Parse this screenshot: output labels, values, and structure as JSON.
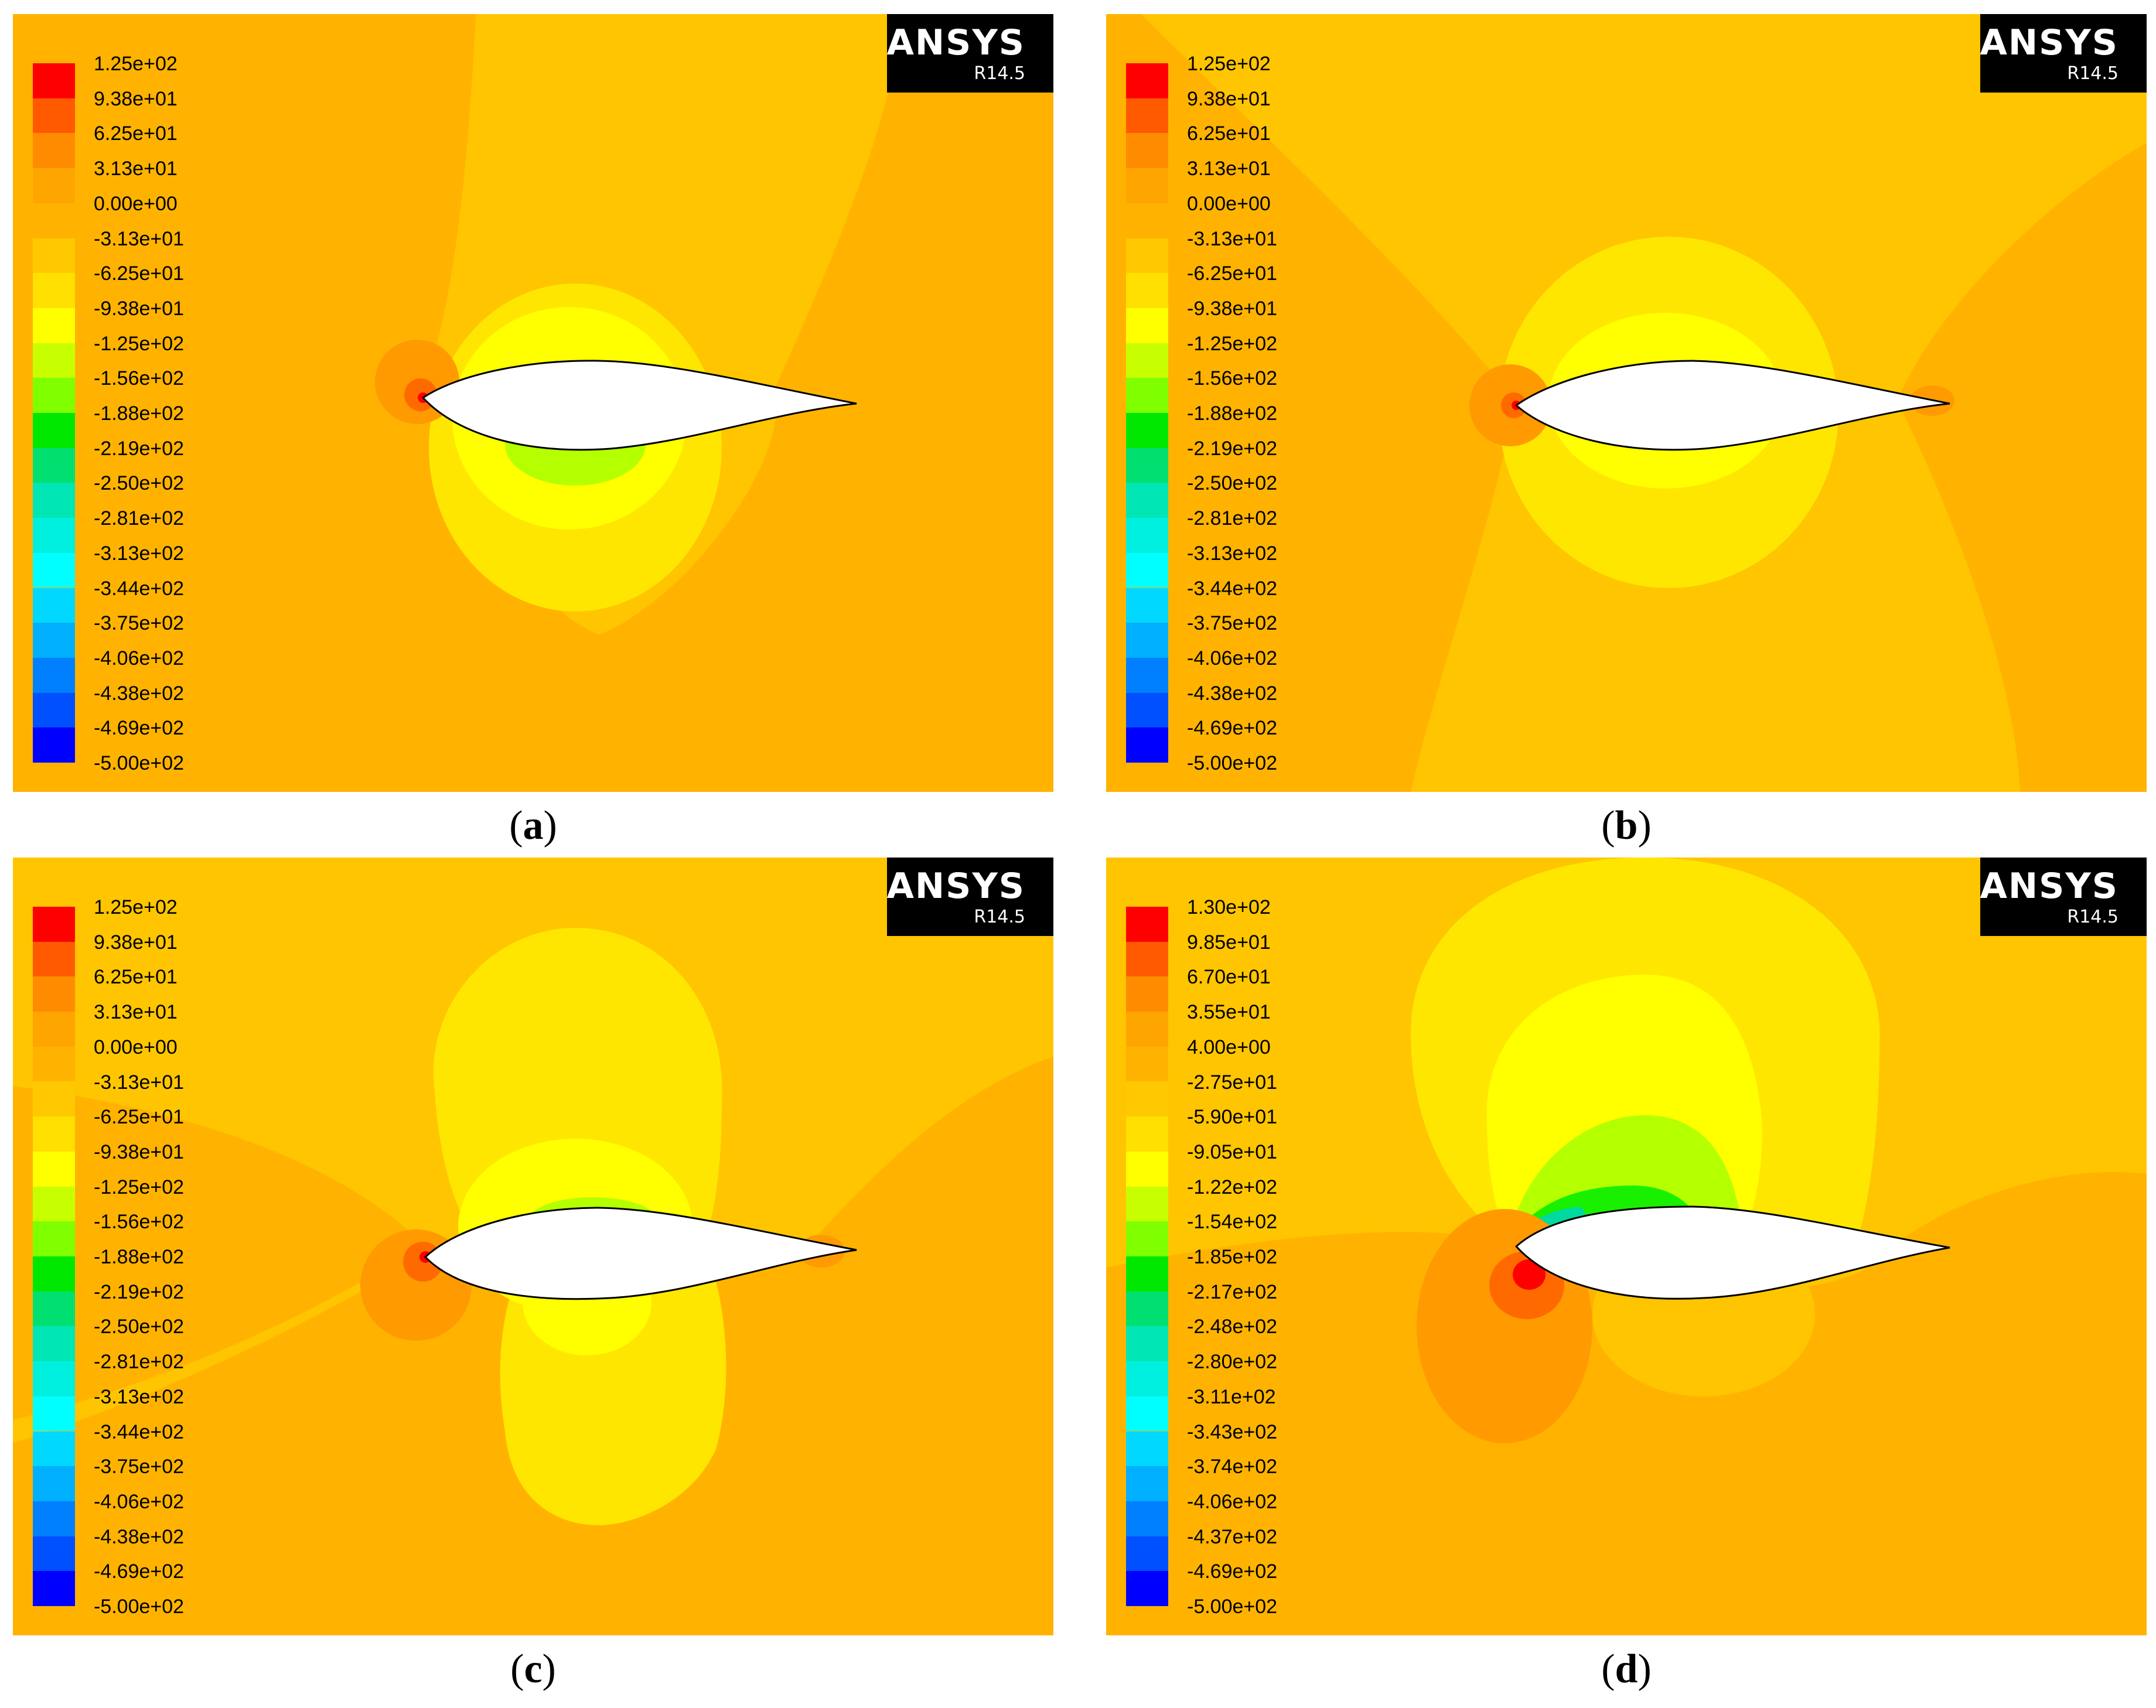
{
  "colors": {
    "background": "#FFB300",
    "band": "#FFC500",
    "inner": "#FFE600",
    "core": "#FFFF00",
    "lime": "#B4FF00",
    "green": "#19F000",
    "teal": "#00D9A0",
    "stag_outer": "#FF9A00",
    "stag_mid": "#FF6A00",
    "stag_core": "#FF0000",
    "airfoil": "#FFFFFF"
  },
  "legend_colors": [
    "#FF0000",
    "#FF5A00",
    "#FF8C00",
    "#FFA500",
    "#FFB300",
    "#FFC800",
    "#FFE000",
    "#FFFF00",
    "#C8FF00",
    "#80FF00",
    "#00E800",
    "#00E070",
    "#00E6B4",
    "#00F0E0",
    "#00FFFF",
    "#00D8FF",
    "#00B0FF",
    "#0080FF",
    "#0050FF",
    "#0000FF"
  ],
  "panels": [
    {
      "id": "a",
      "caption": "a",
      "logo": {
        "brand": "ANSYS",
        "version": "R14.5"
      },
      "legend": [
        "1.25e+02",
        "9.38e+01",
        "6.25e+01",
        "3.13e+01",
        "0.00e+00",
        "-3.13e+01",
        "-6.25e+01",
        "-9.38e+01",
        "-1.25e+02",
        "-1.56e+02",
        "-1.88e+02",
        "-2.19e+02",
        "-2.50e+02",
        "-2.81e+02",
        "-3.13e+02",
        "-3.44e+02",
        "-3.75e+02",
        "-4.06e+02",
        "-4.38e+02",
        "-4.69e+02",
        "-5.00e+02"
      ]
    },
    {
      "id": "b",
      "caption": "b",
      "logo": {
        "brand": "ANSYS",
        "version": "R14.5"
      },
      "legend": [
        "1.25e+02",
        "9.38e+01",
        "6.25e+01",
        "3.13e+01",
        "0.00e+00",
        "-3.13e+01",
        "-6.25e+01",
        "-9.38e+01",
        "-1.25e+02",
        "-1.56e+02",
        "-1.88e+02",
        "-2.19e+02",
        "-2.50e+02",
        "-2.81e+02",
        "-3.13e+02",
        "-3.44e+02",
        "-3.75e+02",
        "-4.06e+02",
        "-4.38e+02",
        "-4.69e+02",
        "-5.00e+02"
      ]
    },
    {
      "id": "c",
      "caption": "c",
      "logo": {
        "brand": "ANSYS",
        "version": "R14.5"
      },
      "legend": [
        "1.25e+02",
        "9.38e+01",
        "6.25e+01",
        "3.13e+01",
        "0.00e+00",
        "-3.13e+01",
        "-6.25e+01",
        "-9.38e+01",
        "-1.25e+02",
        "-1.56e+02",
        "-1.88e+02",
        "-2.19e+02",
        "-2.50e+02",
        "-2.81e+02",
        "-3.13e+02",
        "-3.44e+02",
        "-3.75e+02",
        "-4.06e+02",
        "-4.38e+02",
        "-4.69e+02",
        "-5.00e+02"
      ]
    },
    {
      "id": "d",
      "caption": "d",
      "logo": {
        "brand": "ANSYS",
        "version": "R14.5"
      },
      "legend": [
        "1.30e+02",
        "9.85e+01",
        "6.70e+01",
        "3.55e+01",
        "4.00e+00",
        "-2.75e+01",
        "-5.90e+01",
        "-9.05e+01",
        "-1.22e+02",
        "-1.54e+02",
        "-1.85e+02",
        "-2.17e+02",
        "-2.48e+02",
        "-2.80e+02",
        "-3.11e+02",
        "-3.43e+02",
        "-3.74e+02",
        "-4.06e+02",
        "-4.37e+02",
        "-4.69e+02",
        "-5.00e+02"
      ]
    }
  ]
}
